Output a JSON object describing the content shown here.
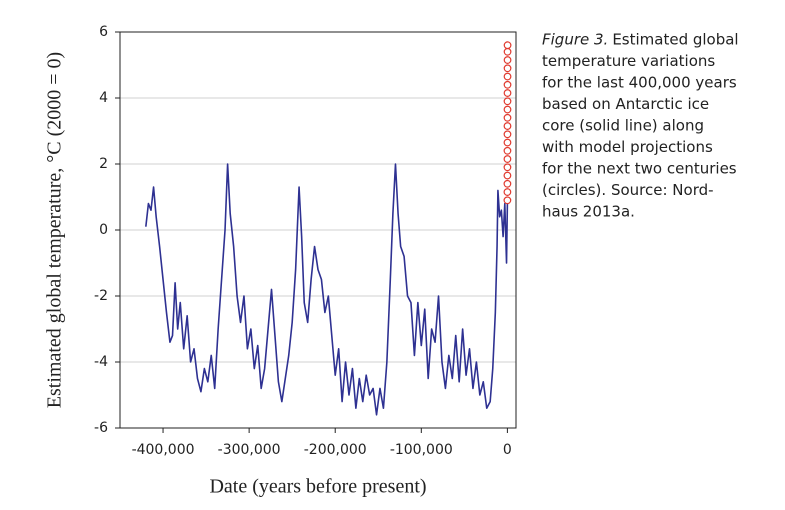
{
  "chart_data": {
    "type": "line",
    "ylabel": "Estimated global temperature, °C (2000 = 0)",
    "xlabel": "Date (years before present)",
    "caption_label": "Figure 3.",
    "caption_lines": [
      "Estimated global",
      "temperature variations",
      "for the last 400,000 years",
      "based on Antarctic ice",
      "core (solid line) along",
      "with model projections",
      "for the next two centuries",
      "(circles). Source: Nord-",
      "haus 2013a."
    ],
    "xlim": [
      -450000,
      10000
    ],
    "ylim": [
      -6,
      6
    ],
    "xticks": [
      {
        "value": -400000,
        "label": "-400,000"
      },
      {
        "value": -300000,
        "label": "-300,000"
      },
      {
        "value": -200000,
        "label": "-200,000"
      },
      {
        "value": -100000,
        "label": "-100,000"
      },
      0
    ],
    "yticks": [
      -6,
      -4,
      -2,
      0,
      2,
      4,
      6
    ],
    "grid": true,
    "series": [
      {
        "color": "#2e3192",
        "marker": "none",
        "x": [
          -420000,
          -417000,
          -414000,
          -411000,
          -408000,
          -404000,
          -400000,
          -396000,
          -392000,
          -389000,
          -386000,
          -383000,
          -380000,
          -376000,
          -372000,
          -368000,
          -364000,
          -360000,
          -356000,
          -352000,
          -348000,
          -344000,
          -340000,
          -336000,
          -332000,
          -328000,
          -325000,
          -322000,
          -318000,
          -314000,
          -310000,
          -306000,
          -302000,
          -298000,
          -294000,
          -290000,
          -286000,
          -282000,
          -278000,
          -274000,
          -270000,
          -266000,
          -262000,
          -258000,
          -254000,
          -250000,
          -246000,
          -242000,
          -239000,
          -236000,
          -232000,
          -228000,
          -224000,
          -220000,
          -216000,
          -212000,
          -208000,
          -204000,
          -200000,
          -196000,
          -192000,
          -188000,
          -184000,
          -180000,
          -176000,
          -172000,
          -168000,
          -164000,
          -160000,
          -156000,
          -152000,
          -148000,
          -144000,
          -140000,
          -136000,
          -133000,
          -130000,
          -127000,
          -124000,
          -120000,
          -116000,
          -112000,
          -108000,
          -104000,
          -100000,
          -96000,
          -92000,
          -88000,
          -84000,
          -80000,
          -76000,
          -72000,
          -68000,
          -64000,
          -60000,
          -56000,
          -52000,
          -48000,
          -44000,
          -40000,
          -36000,
          -32000,
          -28000,
          -24000,
          -20000,
          -17000,
          -14000,
          -12000,
          -11000,
          -9000,
          -7000,
          -5000,
          -3000,
          -1000,
          0
        ],
        "values": [
          0.1,
          0.8,
          0.6,
          1.3,
          0.4,
          -0.5,
          -1.5,
          -2.5,
          -3.4,
          -3.2,
          -1.6,
          -3.0,
          -2.2,
          -3.6,
          -2.6,
          -4.0,
          -3.6,
          -4.5,
          -4.9,
          -4.2,
          -4.6,
          -3.8,
          -4.8,
          -3.0,
          -1.5,
          0.0,
          2.0,
          0.5,
          -0.5,
          -2.0,
          -2.8,
          -2.0,
          -3.6,
          -3.0,
          -4.2,
          -3.5,
          -4.8,
          -4.2,
          -3.0,
          -1.8,
          -3.2,
          -4.6,
          -5.2,
          -4.5,
          -3.8,
          -2.8,
          -1.2,
          1.3,
          -0.2,
          -2.2,
          -2.8,
          -1.5,
          -0.5,
          -1.2,
          -1.5,
          -2.5,
          -2.0,
          -3.2,
          -4.4,
          -3.6,
          -5.2,
          -4.0,
          -5.0,
          -4.2,
          -5.4,
          -4.5,
          -5.2,
          -4.4,
          -5.0,
          -4.8,
          -5.6,
          -4.8,
          -5.4,
          -4.0,
          -1.5,
          0.5,
          2.0,
          0.5,
          -0.5,
          -0.8,
          -2.0,
          -2.2,
          -3.8,
          -2.2,
          -3.5,
          -2.4,
          -4.5,
          -3.0,
          -3.4,
          -2.0,
          -4.0,
          -4.8,
          -3.8,
          -4.5,
          -3.2,
          -4.6,
          -3.0,
          -4.4,
          -3.6,
          -4.8,
          -4.0,
          -5.0,
          -4.6,
          -5.4,
          -5.2,
          -4.2,
          -2.5,
          -0.5,
          1.2,
          0.4,
          0.6,
          -0.2,
          0.8,
          -1.0,
          0.8
        ]
      },
      {
        "color": "#e03a2f",
        "marker": "circle",
        "x": [
          10,
          20,
          30,
          40,
          50,
          60,
          70,
          80,
          90,
          100,
          110,
          120,
          130,
          140,
          150,
          160,
          170,
          180,
          190,
          200
        ],
        "values": [
          0.9,
          1.15,
          1.4,
          1.65,
          1.9,
          2.15,
          2.4,
          2.65,
          2.9,
          3.15,
          3.4,
          3.65,
          3.9,
          4.15,
          4.4,
          4.65,
          4.9,
          5.15,
          5.4,
          5.6
        ]
      }
    ]
  }
}
